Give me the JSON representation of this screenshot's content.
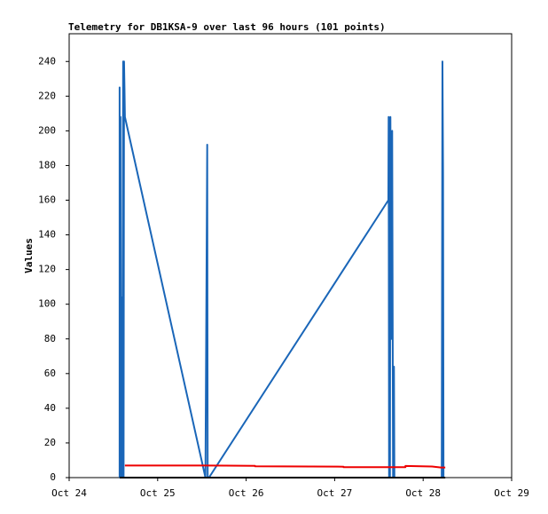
{
  "chart_data": {
    "type": "line",
    "title": "Telemetry for DB1KSA-9 over last 96 hours (101 points)",
    "y_label": "Values",
    "xlim": [
      0,
      5
    ],
    "xticks": [
      {
        "value": 0,
        "label": "Oct 24"
      },
      {
        "value": 1,
        "label": "Oct 25"
      },
      {
        "value": 2,
        "label": "Oct 26"
      },
      {
        "value": 3,
        "label": "Oct 27"
      },
      {
        "value": 4,
        "label": "Oct 28"
      },
      {
        "value": 5,
        "label": "Oct 29"
      }
    ],
    "ylim": [
      0,
      256
    ],
    "yticks": [
      0,
      20,
      40,
      60,
      80,
      100,
      120,
      140,
      160,
      180,
      200,
      220,
      240
    ],
    "grid": false,
    "series": [
      {
        "color": "#000000",
        "x": [
          0.57,
          4.25
        ],
        "values": [
          0,
          0
        ]
      },
      {
        "color": "#ee0000",
        "x": [
          0.63,
          1.5,
          2.1,
          2.1,
          3.1,
          3.1,
          3.8,
          3.8,
          4.1,
          4.2,
          4.25
        ],
        "values": [
          7,
          7,
          6.8,
          6.5,
          6.3,
          6,
          6,
          6.7,
          6.4,
          5.8,
          5.8
        ]
      },
      {
        "color": "#1a66b8",
        "x": [
          0.57,
          0.57,
          0.575,
          0.58,
          0.585,
          0.59,
          0.6,
          0.605,
          0.61,
          0.615,
          0.62,
          0.625,
          0.63,
          1.54,
          1.56,
          1.565,
          1.58,
          3.607,
          3.61,
          3.615,
          3.62,
          3.625,
          3.63,
          3.64,
          3.645,
          3.65,
          3.66,
          3.67,
          3.675,
          3.68,
          4.21,
          4.218,
          4.225,
          4.23
        ],
        "values": [
          0,
          225,
          0,
          208,
          0,
          104,
          0,
          120,
          240,
          0,
          240,
          225,
          208,
          0,
          192,
          0,
          0,
          160,
          208,
          0,
          176,
          0,
          208,
          80,
          184,
          200,
          0,
          64,
          0,
          0,
          0,
          240,
          176,
          0
        ]
      }
    ]
  }
}
